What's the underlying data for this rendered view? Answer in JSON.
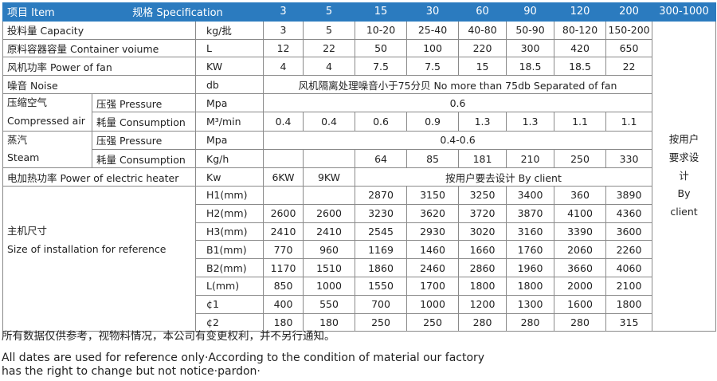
{
  "header": {
    "item": "项目 Item",
    "spec": "规格 Specification",
    "sizes": [
      "3",
      "5",
      "15",
      "30",
      "60",
      "90",
      "120",
      "200",
      "300-1000"
    ]
  },
  "rows": [
    {
      "label": "投料量 Capacity",
      "unit": "kg/批",
      "values": [
        "3",
        "5",
        "10-20",
        "25-40",
        "40-80",
        "50-90",
        "80-120",
        "150-200"
      ]
    },
    {
      "label": "原料容器容量 Container voiume",
      "unit": "L",
      "values": [
        "12",
        "22",
        "50",
        "100",
        "220",
        "300",
        "420",
        "650"
      ]
    },
    {
      "label": "风机功率 Power of fan",
      "unit": "KW",
      "values": [
        "4",
        "4",
        "7.5",
        "7.5",
        "15",
        "18.5",
        "18.5",
        "22"
      ]
    },
    {
      "label": "噪音 Noise",
      "unit": "db",
      "merged": "风机隔离处理噪音小于75分贝 No more than 75db Separated of fan"
    }
  ],
  "compressed_air": {
    "label": [
      "压缩空气",
      "Compressed air"
    ],
    "rows": [
      {
        "sub": "压强 Pressure",
        "unit": "Mpa",
        "merged": "0.6"
      },
      {
        "sub": "耗量 Consumption",
        "unit": "M³/min",
        "values": [
          "0.4",
          "0.4",
          "0.6",
          "0.9",
          "1.3",
          "1.3",
          "1.1",
          "1.1"
        ]
      }
    ]
  },
  "steam": {
    "label": [
      "蒸汽",
      "Steam"
    ],
    "rows": [
      {
        "sub": "压强 Pressure",
        "unit": "Mpa",
        "merged": "0.4-0.6"
      },
      {
        "sub": "耗量 Consumption",
        "unit": "Kg/h",
        "values": [
          null,
          null,
          "64",
          "85",
          "181",
          "210",
          "250",
          "330"
        ]
      }
    ]
  },
  "heater": {
    "label": "电加热功率 Power of electric heater",
    "unit": "Kw",
    "values": [
      "6KW",
      "9KW"
    ],
    "merged": "按用户要去设计 By client"
  },
  "dimensions": {
    "label": [
      "主机尺寸",
      "Size of installation for reference"
    ],
    "rows": [
      {
        "unit": "H1(mm)",
        "values": [
          null,
          null,
          "2870",
          "3150",
          "3250",
          "3400",
          "360",
          "3890"
        ]
      },
      {
        "unit": "H2(mm)",
        "values": [
          "2600",
          "2600",
          "3230",
          "3620",
          "3720",
          "3870",
          "4100",
          "4360"
        ]
      },
      {
        "unit": "H3(mm)",
        "values": [
          "2410",
          "2410",
          "2545",
          "2930",
          "3020",
          "3160",
          "3390",
          "3600"
        ]
      },
      {
        "unit": "B1(mm)",
        "values": [
          "770",
          "960",
          "1169",
          "1460",
          "1660",
          "1760",
          "2060",
          "2260"
        ]
      },
      {
        "unit": "B2(mm)",
        "values": [
          "1170",
          "1510",
          "1860",
          "2460",
          "2860",
          "1960",
          "3660",
          "4060"
        ]
      },
      {
        "unit": "L(mm)",
        "values": [
          "850",
          "1000",
          "1550",
          "1700",
          "1800",
          "1800",
          "2000",
          "2100"
        ]
      },
      {
        "unit": "¢1",
        "values": [
          "400",
          "550",
          "700",
          "1000",
          "1200",
          "1300",
          "1600",
          "1800"
        ]
      },
      {
        "unit": "¢2",
        "values": [
          "180",
          "180",
          "250",
          "250",
          "280",
          "280",
          "280",
          "315"
        ]
      }
    ]
  },
  "last_column": [
    "按用户",
    "要求设",
    "计",
    "By",
    "client"
  ],
  "notes": [
    "所有数据仅供参考，视物料情况，本公司有变更权利，并不另行通知。",
    "All dates are used for reference only·According to the condition of material our factory",
    "has the right to change but not notice·pardon·"
  ]
}
